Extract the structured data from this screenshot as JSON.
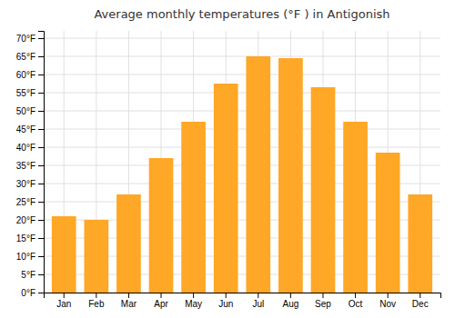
{
  "chart_data": {
    "type": "bar",
    "title": "Average monthly temperatures (°F ) in Antigonish",
    "categories": [
      "Jan",
      "Feb",
      "Mar",
      "Apr",
      "May",
      "Jun",
      "Jul",
      "Aug",
      "Sep",
      "Oct",
      "Nov",
      "Dec"
    ],
    "values": [
      21,
      20,
      27,
      37,
      47,
      57.5,
      65,
      64.5,
      56.5,
      47,
      38.5,
      27
    ],
    "color": "#FFA726",
    "ylim": [
      0,
      72
    ],
    "yticks": [
      {
        "value": 0,
        "label": "0°F"
      },
      {
        "value": 5,
        "label": "5°F"
      },
      {
        "value": 10,
        "label": "10°F"
      },
      {
        "value": 15,
        "label": "15°F"
      },
      {
        "value": 20,
        "label": "20°F"
      },
      {
        "value": 25,
        "label": "25°F"
      },
      {
        "value": 30,
        "label": "30°F"
      },
      {
        "value": 35,
        "label": "35°F"
      },
      {
        "value": 40,
        "label": "40°F"
      },
      {
        "value": 45,
        "label": "45°F"
      },
      {
        "value": 50,
        "label": "50°F"
      },
      {
        "value": 55,
        "label": "55°F"
      },
      {
        "value": 60,
        "label": "60°F"
      },
      {
        "value": 65,
        "label": "65°F"
      },
      {
        "value": 70,
        "label": "70°F"
      }
    ],
    "grid": true
  }
}
